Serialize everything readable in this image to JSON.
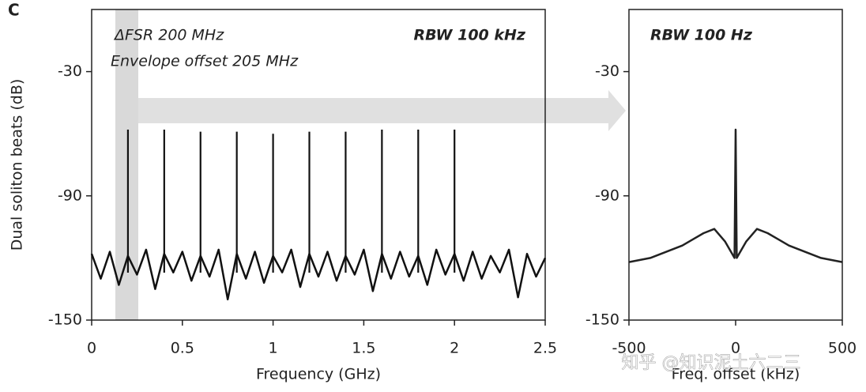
{
  "panel_label": "C",
  "watermark": "知乎 @知识泥土六二三",
  "chart_data": [
    {
      "type": "line",
      "ylabel": "Dual soliton beats (dB)",
      "xlabel": "Frequency (GHz)",
      "annotations": [
        "ΔFSR 200 MHz",
        "Envelope offset 205 MHz",
        "RBW 100 kHz"
      ],
      "xlim": [
        0,
        2.5
      ],
      "xticks": [
        0,
        0.5,
        1,
        1.5,
        2,
        2.5
      ],
      "ylim": [
        -150,
        0
      ],
      "yticks": [
        -150,
        -90,
        -30
      ],
      "series": [
        {
          "color": "#111111",
          "x": [
            0,
            0.05,
            0.1,
            0.15,
            0.2,
            0.25,
            0.3,
            0.35,
            0.4,
            0.45,
            0.5,
            0.55,
            0.6,
            0.65,
            0.7,
            0.75,
            0.8,
            0.85,
            0.9,
            0.95,
            1,
            1.05,
            1.1,
            1.15,
            1.2,
            1.25,
            1.3,
            1.35,
            1.4,
            1.45,
            1.5,
            1.55,
            1.6,
            1.65,
            1.7,
            1.75,
            1.8,
            1.85,
            1.9,
            1.95,
            2,
            2.05,
            2.1,
            2.15,
            2.2,
            2.25,
            2.3,
            2.35,
            2.4,
            2.45,
            2.5
          ],
          "values": [
            -118,
            -130,
            -117,
            -133,
            -119,
            -128,
            -116,
            -135,
            -118,
            -127,
            -117,
            -131,
            -119,
            -129,
            -116,
            -140,
            -118,
            -130,
            -117,
            -132,
            -119,
            -127,
            -116,
            -134,
            -118,
            -129,
            -117,
            -131,
            -119,
            -128,
            -116,
            -136,
            -118,
            -130,
            -117,
            -129,
            -119,
            -133,
            -116,
            -128,
            -118,
            -131,
            -117,
            -130,
            -119,
            -127,
            -116,
            -139,
            -118,
            -129,
            -120
          ]
        },
        {
          "color": "#111111",
          "style": "stem",
          "x": [
            0.2,
            0.4,
            0.6,
            0.8,
            1.0,
            1.2,
            1.4,
            1.6,
            1.8,
            2.0
          ],
          "values": [
            -58,
            -58,
            -59,
            -59,
            -60,
            -59,
            -59,
            -58,
            -58,
            -58
          ]
        }
      ]
    },
    {
      "type": "line",
      "xlabel": "Freq. offset (kHz)",
      "annotations": [
        "RBW 100 Hz"
      ],
      "xlim": [
        -500,
        500
      ],
      "xticks": [
        -500,
        0,
        500
      ],
      "ylim": [
        -150,
        0
      ],
      "yticks": [
        -150,
        -90,
        -30
      ],
      "series": [
        {
          "color": "#222222",
          "x": [
            -500,
            -450,
            -400,
            -350,
            -300,
            -250,
            -200,
            -150,
            -100,
            -50,
            -5,
            0,
            5,
            50,
            100,
            150,
            200,
            250,
            300,
            350,
            400,
            450,
            500
          ],
          "values": [
            -122,
            -121,
            -120,
            -118,
            -116,
            -114,
            -111,
            -108,
            -106,
            -112,
            -120,
            -58,
            -120,
            -112,
            -106,
            -108,
            -111,
            -114,
            -116,
            -118,
            -120,
            -121,
            -122
          ]
        }
      ]
    }
  ]
}
